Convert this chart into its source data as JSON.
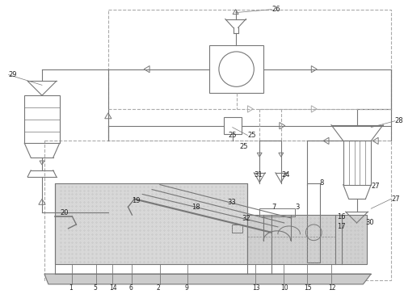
{
  "bg_color": "#ffffff",
  "lc": "#777777",
  "dc": "#aaaaaa",
  "gc": "#cccccc",
  "fig_width": 5.0,
  "fig_height": 3.64,
  "dpi": 100
}
